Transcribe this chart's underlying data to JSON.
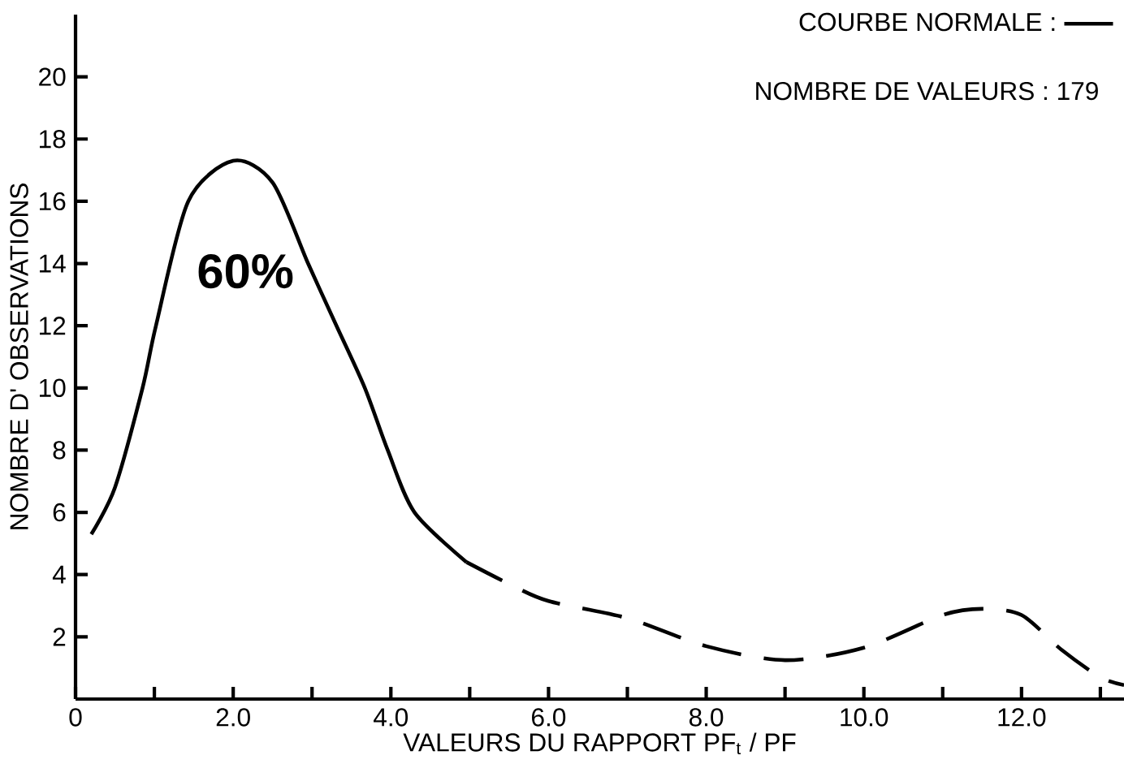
{
  "chart_data": {
    "type": "line",
    "xlabel": "VALEURS   DU   RAPPORT   PF$_{t}$ / PF",
    "ylabel": "NOMBRE     D' OBSERVATIONS",
    "xlim": [
      0,
      13.3
    ],
    "ylim": [
      0,
      22
    ],
    "xticks": [
      {
        "value": 0,
        "label": "0"
      },
      {
        "value": 1,
        "label": null
      },
      {
        "value": 2,
        "label": "2.0"
      },
      {
        "value": 3,
        "label": null
      },
      {
        "value": 4,
        "label": "4.0"
      },
      {
        "value": 5,
        "label": null
      },
      {
        "value": 6,
        "label": "6.0"
      },
      {
        "value": 7,
        "label": null
      },
      {
        "value": 8,
        "label": "8.0"
      },
      {
        "value": 9,
        "label": null
      },
      {
        "value": 10,
        "label": "10.0"
      },
      {
        "value": 11,
        "label": null
      },
      {
        "value": 12,
        "label": "12.0"
      },
      {
        "value": 13,
        "label": null
      }
    ],
    "yticks": [
      2,
      4,
      6,
      8,
      10,
      12,
      14,
      16,
      18,
      20
    ],
    "grid": false,
    "legend": "top right",
    "marker": "none",
    "series": [
      {
        "name": "COURBE   NORMALE :",
        "color": "#000000",
        "line_style": "solid",
        "x": [
          0.2,
          0.5,
          0.85,
          1.02,
          1.43,
          2.0,
          2.5,
          2.95,
          3.31,
          3.67,
          3.96,
          4.3,
          4.96
        ],
        "values": [
          5.3,
          6.8,
          10,
          12,
          16,
          17.3,
          16.6,
          14,
          12,
          10,
          8,
          6,
          4.4
        ]
      },
      {
        "color": "#000000",
        "line_style": "dashed",
        "x": [
          4.96,
          5.5,
          6.0,
          7.0,
          8.0,
          9.0,
          10.0,
          11.0,
          11.5,
          12.0,
          12.5,
          13.0,
          13.3
        ],
        "values": [
          4.4,
          3.7,
          3.15,
          2.6,
          1.7,
          1.25,
          1.65,
          2.7,
          2.9,
          2.7,
          1.6,
          0.7,
          0.45
        ]
      }
    ],
    "annotations": [
      "NOMBRE     DE     VALEURS :   179",
      "60%"
    ]
  }
}
